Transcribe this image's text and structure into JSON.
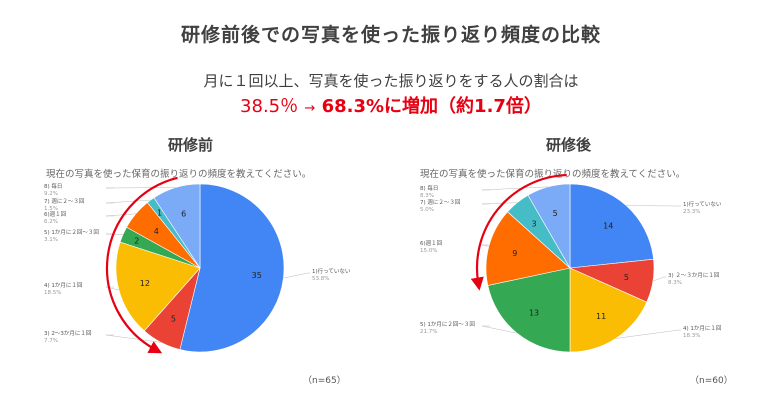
{
  "title": "研修前後での写真を使った振り返り頻度の比較",
  "subtitle": "月に１回以上、写真を使った振り返りをする人の割合は",
  "highlight": {
    "before": "38.5％",
    "arrow": "→",
    "after": "68.3%に増加（約1.7倍）"
  },
  "chart_data": [
    {
      "type": "pie",
      "title": "研修前",
      "question": "現在の写真を使った保育の振り返りの頻度を教えてください。",
      "n_label": "（n=65）",
      "slices": [
        {
          "label": "1)行っていない",
          "value": 35,
          "percent": "53.8%",
          "color": "#4285f4"
        },
        {
          "label": "3) 2～3か月に１回",
          "value": 5,
          "percent": "7.7%",
          "color": "#ea4335"
        },
        {
          "label": "4) 1か月に１回",
          "value": 12,
          "percent": "18.5%",
          "color": "#fbbc04"
        },
        {
          "label": "5) 1か月に２回～３回",
          "value": 2,
          "percent": "3.1%",
          "color": "#34a853"
        },
        {
          "label": "6)週１回",
          "value": 4,
          "percent": "6.2%",
          "color": "#ff6d01"
        },
        {
          "label": "7) 週に２～３回",
          "value": 1,
          "percent": "1.5%",
          "color": "#46bdc6"
        },
        {
          "label": "8) 毎日",
          "value": 6,
          "percent": "9.2%",
          "color": "#7baaf7"
        }
      ]
    },
    {
      "type": "pie",
      "title": "研修後",
      "question": "現在の写真を使った保育の振り返りの頻度を教えてください。",
      "n_label": "（n=60）",
      "slices": [
        {
          "label": "1)行っていない",
          "value": 14,
          "percent": "23.3%",
          "color": "#4285f4"
        },
        {
          "label": "3) ２～３か月に１回",
          "value": 5,
          "percent": "8.3%",
          "color": "#ea4335"
        },
        {
          "label": "4) 1か月に１回",
          "value": 11,
          "percent": "18.3%",
          "color": "#fbbc04"
        },
        {
          "label": "5) 1か月に２回～３回",
          "value": 13,
          "percent": "21.7%",
          "color": "#34a853"
        },
        {
          "label": "6)週１回",
          "value": 9,
          "percent": "15.0%",
          "color": "#ff6d01"
        },
        {
          "label": "7) 週に２～３回",
          "value": 3,
          "percent": "5.0%",
          "color": "#46bdc6"
        },
        {
          "label": "8) 毎日",
          "value": 5,
          "percent": "8.3%",
          "color": "#7baaf7"
        }
      ]
    }
  ]
}
